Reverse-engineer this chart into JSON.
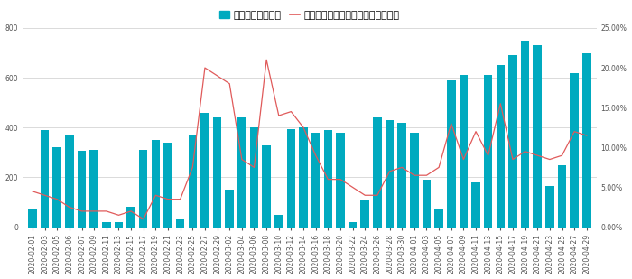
{
  "bar_color": "#00AABF",
  "line_color": "#E05A5A",
  "ylim_left": [
    0,
    800
  ],
  "ylim_right": [
    0,
    0.25
  ],
  "yticks_left": [
    0,
    200,
    400,
    600,
    800
  ],
  "yticks_right": [
    0.0,
    0.05,
    0.1,
    0.15,
    0.2,
    0.25
  ],
  "dates": [
    "2020-02-01",
    "2020-02-03",
    "2020-02-05",
    "2020-02-06",
    "2020-02-07",
    "2020-02-09",
    "2020-02-11",
    "2020-02-13",
    "2020-02-15",
    "2020-02-17",
    "2020-02-19",
    "2020-02-21",
    "2020-02-23",
    "2020-02-25",
    "2020-02-27",
    "2020-02-29",
    "2020-03-02",
    "2020-03-04",
    "2020-03-06",
    "2020-03-08",
    "2020-03-10",
    "2020-03-12",
    "2020-03-14",
    "2020-03-16",
    "2020-03-18",
    "2020-03-20",
    "2020-03-22",
    "2020-03-24",
    "2020-03-26",
    "2020-03-28",
    "2020-03-30",
    "2020-04-01",
    "2020-04-03",
    "2020-04-05",
    "2020-04-07",
    "2020-04-09",
    "2020-04-11",
    "2020-04-13",
    "2020-04-15",
    "2020-04-17",
    "2020-04-19",
    "2020-04-21",
    "2020-04-23",
    "2020-04-25",
    "2020-04-27",
    "2020-04-29"
  ],
  "bar_values": [
    70,
    390,
    320,
    370,
    305,
    310,
    20,
    20,
    80,
    310,
    350,
    340,
    30,
    370,
    460,
    440,
    150,
    440,
    400,
    330,
    50,
    395,
    400,
    380,
    390,
    380,
    20,
    110,
    440,
    430,
    420,
    380,
    190,
    70,
    590,
    610,
    180,
    610,
    650,
    690,
    750,
    730,
    165,
    250,
    620,
    700
  ],
  "line_values": [
    0.045,
    0.04,
    0.035,
    0.025,
    0.02,
    0.02,
    0.02,
    0.015,
    0.02,
    0.01,
    0.04,
    0.035,
    0.035,
    0.075,
    0.2,
    0.19,
    0.18,
    0.085,
    0.075,
    0.21,
    0.14,
    0.145,
    0.125,
    0.09,
    0.06,
    0.06,
    0.05,
    0.04,
    0.04,
    0.07,
    0.075,
    0.065,
    0.065,
    0.075,
    0.13,
    0.085,
    0.12,
    0.09,
    0.155,
    0.085,
    0.095,
    0.09,
    0.085,
    0.09,
    0.12,
    0.115
  ],
  "legend_bar_label": "団内連絡（全体）",
  "legend_line_label": "「コロナウイルス」に関連する配信",
  "bg_color": "#ffffff",
  "grid_color": "#cccccc",
  "tick_fontsize": 5.5,
  "legend_fontsize": 8
}
